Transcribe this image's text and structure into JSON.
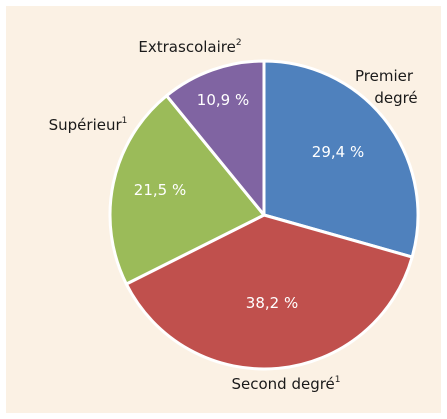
{
  "chart_data": {
    "type": "pie",
    "slices": [
      {
        "name": "Premier degré",
        "name_line1": "Premier",
        "name_line2": "degré",
        "value": 29.4,
        "value_label": "29,4 %",
        "color": "#4f81bd"
      },
      {
        "name": "Second degré",
        "sup": "1",
        "value": 38.2,
        "value_label": "38,2 %",
        "color": "#c0504d"
      },
      {
        "name": "Supérieur",
        "sup": "1",
        "value": 21.5,
        "value_label": "21,5 %",
        "color": "#9bbb59"
      },
      {
        "name": "Extrascolaire",
        "sup": "2",
        "value": 10.9,
        "value_label": "10,9 %",
        "color": "#8064a2"
      }
    ]
  }
}
